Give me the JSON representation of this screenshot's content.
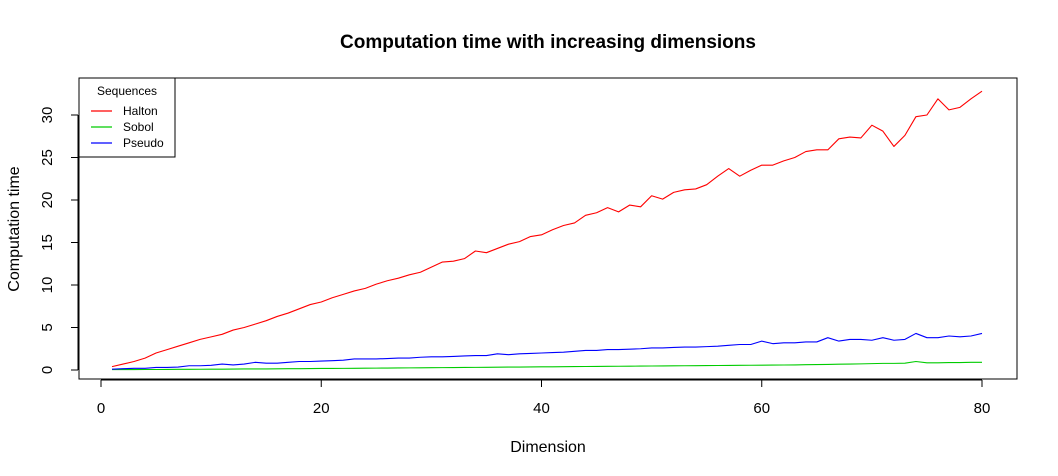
{
  "chart_data": {
    "type": "line",
    "title": "Computation time with increasing dimensions",
    "xlabel": "Dimension",
    "ylabel": "Computation time",
    "xlim": [
      1,
      80
    ],
    "ylim": [
      0,
      33
    ],
    "xticks": [
      0,
      20,
      40,
      60,
      80
    ],
    "yticks": [
      0,
      5,
      10,
      15,
      20,
      25,
      30
    ],
    "grid": false,
    "legend": {
      "title": "Sequences",
      "position": "top-left",
      "entries": [
        "Halton",
        "Sobol",
        "Pseudo"
      ]
    },
    "x_start": 1,
    "series": [
      {
        "name": "Halton",
        "color": "#ff0000",
        "values": [
          0.4,
          0.7,
          1.0,
          1.4,
          2.0,
          2.4,
          2.8,
          3.2,
          3.6,
          3.9,
          4.2,
          4.7,
          5.0,
          5.4,
          5.8,
          6.3,
          6.7,
          7.2,
          7.7,
          8.0,
          8.5,
          8.9,
          9.3,
          9.6,
          10.1,
          10.5,
          10.8,
          11.2,
          11.5,
          12.1,
          12.7,
          12.8,
          13.1,
          14.0,
          13.8,
          14.3,
          14.8,
          15.1,
          15.7,
          15.9,
          16.5,
          17.0,
          17.3,
          18.2,
          18.5,
          19.1,
          18.6,
          19.4,
          19.2,
          20.5,
          20.1,
          20.9,
          21.2,
          21.3,
          21.8,
          22.8,
          23.7,
          22.8,
          23.5,
          24.1,
          24.1,
          24.6,
          25.0,
          25.7,
          25.9,
          25.9,
          27.2,
          27.4,
          27.3,
          28.8,
          28.1,
          26.3,
          27.6,
          29.8,
          30.0,
          31.9,
          30.6,
          30.9,
          31.9,
          32.8
        ]
      },
      {
        "name": "Sobol",
        "color": "#00cc00",
        "values": [
          0.05,
          0.05,
          0.05,
          0.06,
          0.06,
          0.07,
          0.08,
          0.08,
          0.09,
          0.1,
          0.1,
          0.11,
          0.12,
          0.12,
          0.13,
          0.14,
          0.15,
          0.16,
          0.17,
          0.18,
          0.18,
          0.19,
          0.2,
          0.21,
          0.22,
          0.23,
          0.24,
          0.25,
          0.26,
          0.27,
          0.28,
          0.29,
          0.3,
          0.31,
          0.32,
          0.33,
          0.34,
          0.35,
          0.36,
          0.37,
          0.38,
          0.39,
          0.4,
          0.41,
          0.42,
          0.43,
          0.44,
          0.45,
          0.46,
          0.47,
          0.48,
          0.49,
          0.5,
          0.51,
          0.52,
          0.53,
          0.54,
          0.55,
          0.56,
          0.57,
          0.58,
          0.59,
          0.6,
          0.62,
          0.64,
          0.65,
          0.68,
          0.7,
          0.72,
          0.75,
          0.78,
          0.78,
          0.8,
          1.0,
          0.85,
          0.85,
          0.88,
          0.88,
          0.9,
          0.9
        ]
      },
      {
        "name": "Pseudo",
        "color": "#0000ff",
        "values": [
          0.1,
          0.15,
          0.2,
          0.2,
          0.3,
          0.3,
          0.35,
          0.5,
          0.5,
          0.55,
          0.7,
          0.6,
          0.7,
          0.9,
          0.8,
          0.8,
          0.9,
          1.0,
          1.0,
          1.05,
          1.1,
          1.15,
          1.3,
          1.3,
          1.3,
          1.35,
          1.4,
          1.4,
          1.5,
          1.55,
          1.55,
          1.6,
          1.65,
          1.7,
          1.7,
          1.9,
          1.8,
          1.9,
          1.95,
          2.0,
          2.05,
          2.1,
          2.2,
          2.3,
          2.3,
          2.4,
          2.4,
          2.45,
          2.5,
          2.6,
          2.6,
          2.65,
          2.7,
          2.7,
          2.75,
          2.8,
          2.9,
          3.0,
          3.0,
          3.4,
          3.1,
          3.2,
          3.2,
          3.3,
          3.3,
          3.8,
          3.4,
          3.6,
          3.6,
          3.5,
          3.8,
          3.5,
          3.6,
          4.3,
          3.8,
          3.8,
          4.0,
          3.9,
          4.0,
          4.3
        ]
      }
    ]
  }
}
